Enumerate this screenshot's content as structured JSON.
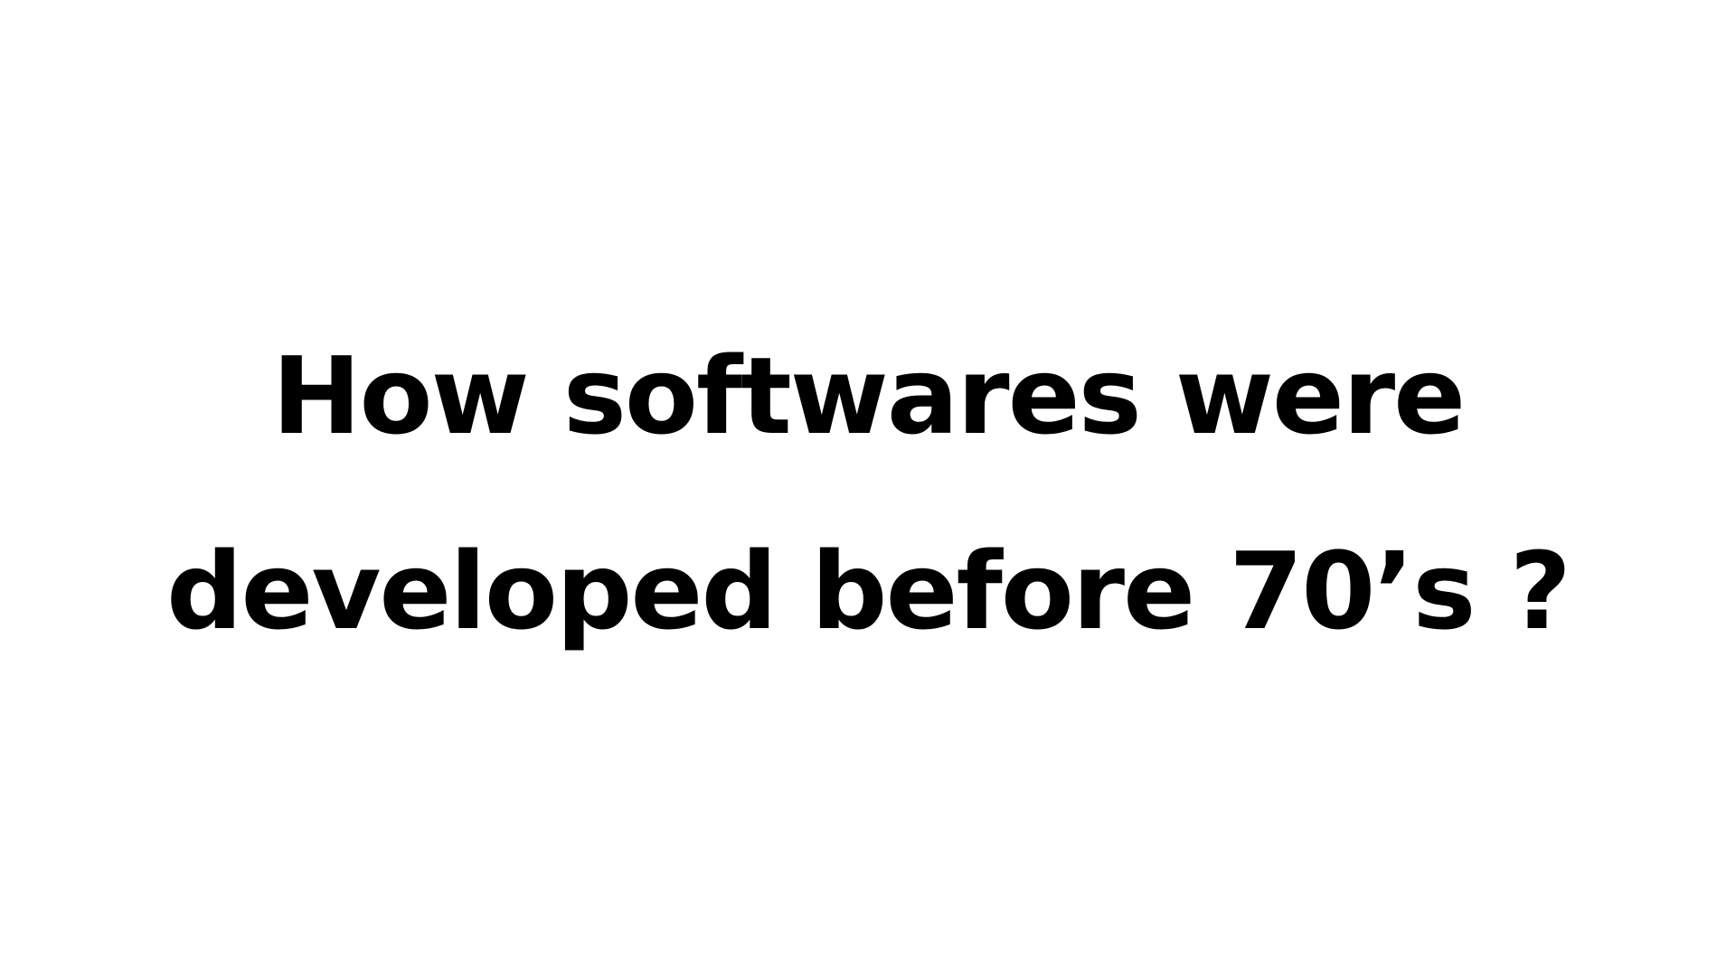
{
  "slide": {
    "title_line_1": "How softwares were",
    "title_line_2": "developed before 70’s ?"
  },
  "colors": {
    "background": "#ffffff",
    "text": "#000000"
  }
}
